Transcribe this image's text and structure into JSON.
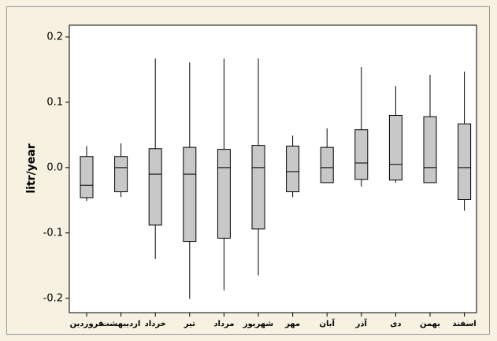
{
  "chart_data": {
    "type": "box",
    "y_label": "litr/year",
    "categories": [
      "فروردین",
      "اردیبهشت",
      "خرداد",
      "تیر",
      "مرداد",
      "شهریور",
      "مهر",
      "آبان",
      "آذر",
      "دی",
      "بهمن",
      "اسفند"
    ],
    "max": [
      0.033,
      0.037,
      0.167,
      0.161,
      0.167,
      0.167,
      0.049,
      0.06,
      0.154,
      0.125,
      0.142,
      0.147
    ],
    "q3": [
      0.017,
      0.017,
      0.029,
      0.031,
      0.028,
      0.034,
      0.033,
      0.031,
      0.058,
      0.08,
      0.078,
      0.067
    ],
    "median": [
      -0.027,
      0,
      -0.01,
      -0.01,
      0,
      0,
      -0.006,
      0,
      0.007,
      0.005,
      0,
      0
    ],
    "q1": [
      -0.046,
      -0.037,
      -0.088,
      -0.113,
      -0.108,
      -0.094,
      -0.037,
      -0.023,
      -0.018,
      -0.019,
      -0.023,
      -0.049
    ],
    "min": [
      -0.051,
      -0.045,
      -0.14,
      -0.201,
      -0.188,
      -0.165,
      -0.045,
      -0.023,
      -0.029,
      -0.023,
      -0.023,
      -0.066
    ],
    "color": "#c8c8c8",
    "ylim": [
      -0.222,
      0.218
    ],
    "yticks": [
      -0.2,
      -0.1,
      {
        "value": 0,
        "label": "0.0"
      },
      0.1,
      0.2
    ]
  }
}
